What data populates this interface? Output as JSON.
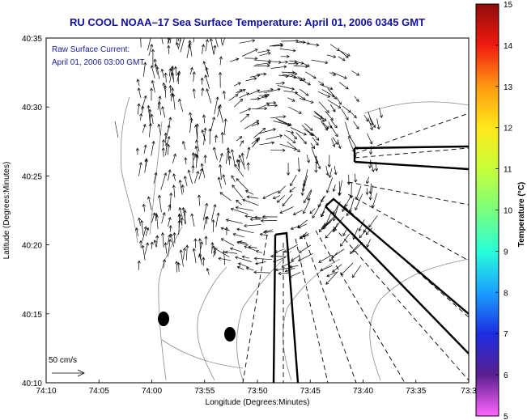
{
  "title": "RU COOL  NOAA–17  Sea Surface Temperature:  April 01, 2006 0345 GMT",
  "annotation": {
    "line1": "Raw Surface Current:",
    "line2": "April 01, 2006 03:00 GMT"
  },
  "scale_label": "50 cm/s",
  "axes": {
    "xlabel": "Longitude (Degrees:Minutes)",
    "ylabel": "Latitude (Degrees:Minutes)",
    "xticks": [
      "74:10",
      "74:05",
      "74:00",
      "73:55",
      "73:50",
      "73:45",
      "73:40",
      "73:35",
      "73:3"
    ],
    "yticks": [
      "40:35",
      "40:30",
      "40:25",
      "40:20",
      "40:15",
      "40:10"
    ]
  },
  "colorbar": {
    "label": "Temperature (°C)",
    "ticks": [
      "15",
      "14",
      "13",
      "12",
      "11",
      "10",
      "9",
      "8",
      "7",
      "6",
      "5"
    ],
    "colors": [
      "#ff66ff",
      "#5a1f8f",
      "#1b2de0",
      "#1aa0ff",
      "#28ffd8",
      "#7bff7b",
      "#c6ff3a",
      "#ffe81a",
      "#ff9a12",
      "#f11a0e",
      "#8e0c0b"
    ]
  },
  "colors": {
    "title": "#1010a0",
    "frame": "#000000"
  }
}
